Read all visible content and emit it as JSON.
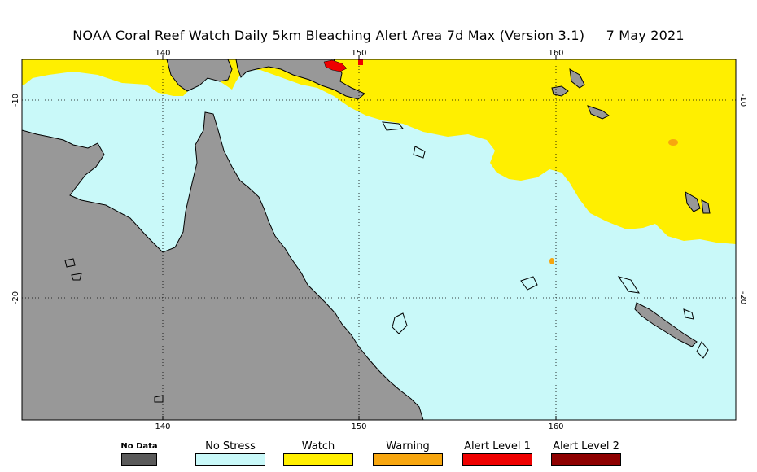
{
  "title": {
    "text": "NOAA Coral Reef Watch Daily 5km Bleaching Alert Area 7d Max (Version 3.1)",
    "date": "7 May 2021"
  },
  "axes": {
    "x_ticks": [
      "140",
      "150",
      "160"
    ],
    "y_ticks": [
      "-10",
      "-20"
    ]
  },
  "legend": {
    "items": [
      {
        "label": "No Data",
        "color": "#5a5a5a"
      },
      {
        "label": "No Stress",
        "color": "#c9f9f9"
      },
      {
        "label": "Watch",
        "color": "#ffef00"
      },
      {
        "label": "Warning",
        "color": "#f7a60f"
      },
      {
        "label": "Alert Level 1",
        "color": "#ef0000"
      },
      {
        "label": "Alert Level 2",
        "color": "#8e0000"
      }
    ]
  },
  "colors": {
    "land": "#989898",
    "sea": "#c9f9f9",
    "watch": "#ffef00",
    "warning": "#f7a60f",
    "alert1": "#ef0000"
  }
}
